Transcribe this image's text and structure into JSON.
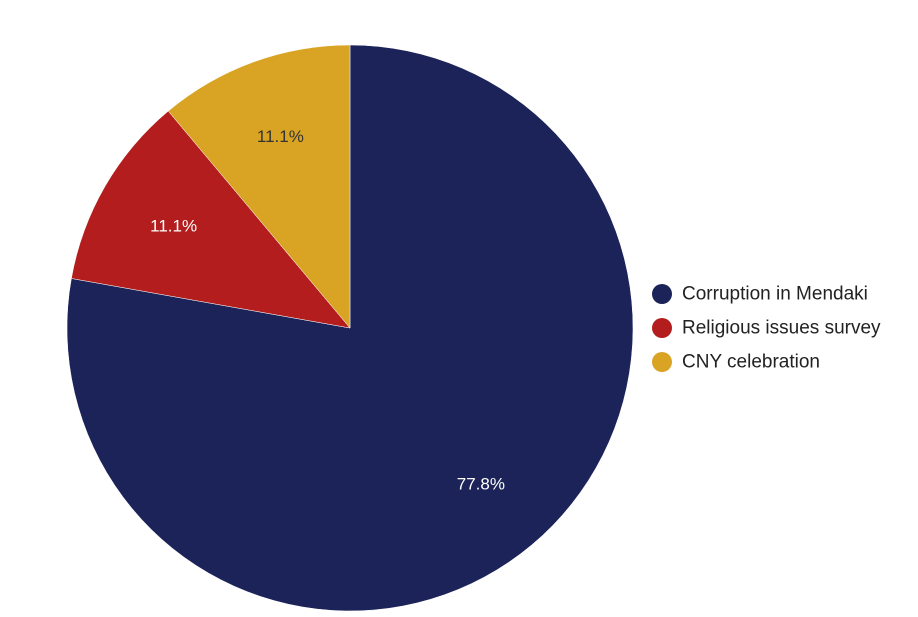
{
  "chart_data": {
    "type": "pie",
    "title": "",
    "legend_position": "right",
    "start_angle_deg": 0,
    "direction": "clockwise",
    "slices": [
      {
        "label": "Corruption in Mendaki",
        "value": 77.8,
        "value_label": "77.8%",
        "color": "#1c2359",
        "label_color": "#ffffff"
      },
      {
        "label": "Religious issues survey",
        "value": 11.1,
        "value_label": "11.1%",
        "color": "#b31d1d",
        "label_color": "#ffffff"
      },
      {
        "label": "CNY celebration",
        "value": 11.1,
        "value_label": "11.1%",
        "color": "#d9a424",
        "label_color": "#333333"
      }
    ]
  }
}
